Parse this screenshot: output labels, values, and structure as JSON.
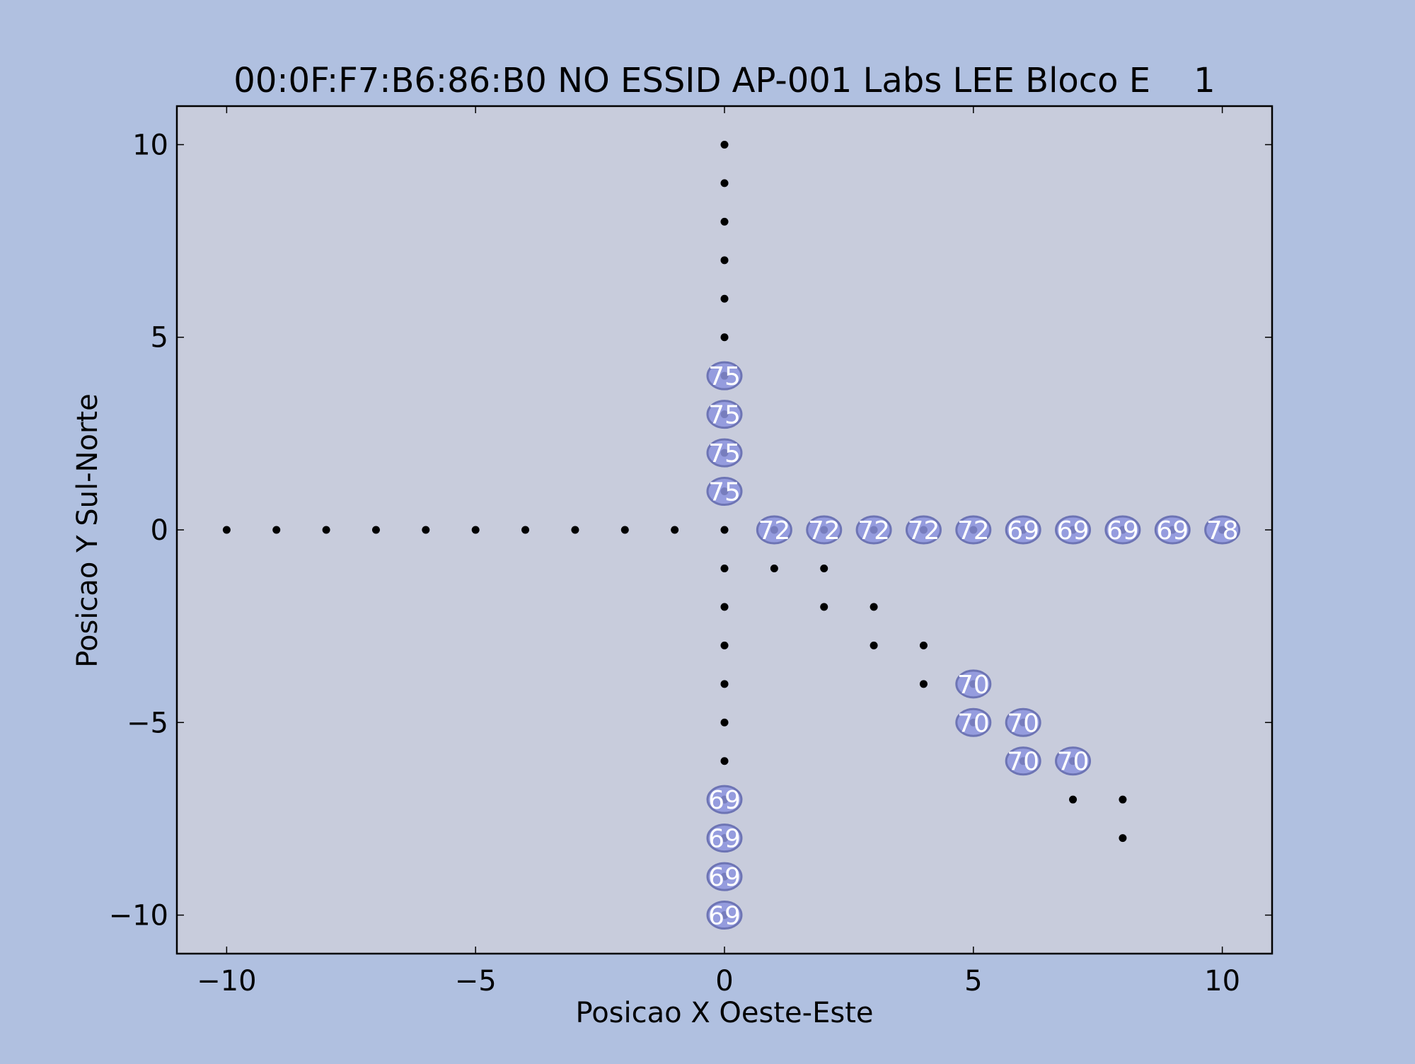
{
  "chart_data": {
    "type": "scatter",
    "title": "00:0F:F7:B6:86:B0 NO ESSID AP-001 Labs LEE Bloco E    1",
    "xlabel": "Posicao X Oeste-Este",
    "ylabel": "Posicao Y Sul-Norte",
    "xlim": [
      -11,
      11
    ],
    "ylim": [
      -11,
      11
    ],
    "xticks": [
      -10,
      -5,
      0,
      5,
      10
    ],
    "yticks": [
      -10,
      -5,
      0,
      5,
      10
    ],
    "xtick_labels": [
      "−10",
      "−5",
      "0",
      "5",
      "10"
    ],
    "ytick_labels": [
      "−10",
      "−5",
      "0",
      "5",
      "10"
    ],
    "grid": false,
    "colors": {
      "figure_bg": "#b0c0e0",
      "axes_bg": "#c8ccdc",
      "point": "#000000",
      "label_fill": "#8c93de",
      "label_edge": "#6d74b4",
      "label_text": "#ffffff"
    },
    "points": [
      [
        -10,
        0
      ],
      [
        -9,
        0
      ],
      [
        -8,
        0
      ],
      [
        -7,
        0
      ],
      [
        -6,
        0
      ],
      [
        -5,
        0
      ],
      [
        -4,
        0
      ],
      [
        -3,
        0
      ],
      [
        -2,
        0
      ],
      [
        -1,
        0
      ],
      [
        0,
        0
      ],
      [
        1,
        0
      ],
      [
        2,
        0
      ],
      [
        3,
        0
      ],
      [
        4,
        0
      ],
      [
        5,
        0
      ],
      [
        6,
        0
      ],
      [
        7,
        0
      ],
      [
        8,
        0
      ],
      [
        9,
        0
      ],
      [
        10,
        0
      ],
      [
        0,
        1
      ],
      [
        0,
        2
      ],
      [
        0,
        3
      ],
      [
        0,
        4
      ],
      [
        0,
        5
      ],
      [
        0,
        6
      ],
      [
        0,
        7
      ],
      [
        0,
        8
      ],
      [
        0,
        9
      ],
      [
        0,
        10
      ],
      [
        0,
        -1
      ],
      [
        0,
        -2
      ],
      [
        0,
        -3
      ],
      [
        0,
        -4
      ],
      [
        0,
        -5
      ],
      [
        0,
        -6
      ],
      [
        0,
        -7
      ],
      [
        0,
        -8
      ],
      [
        0,
        -9
      ],
      [
        0,
        -10
      ],
      [
        1,
        -1
      ],
      [
        2,
        -1
      ],
      [
        2,
        -2
      ],
      [
        3,
        -2
      ],
      [
        3,
        -3
      ],
      [
        4,
        -3
      ],
      [
        4,
        -4
      ],
      [
        5,
        -4
      ],
      [
        5,
        -5
      ],
      [
        6,
        -5
      ],
      [
        6,
        -6
      ],
      [
        7,
        -6
      ],
      [
        7,
        -7
      ],
      [
        8,
        -7
      ],
      [
        8,
        -8
      ]
    ],
    "labels": [
      {
        "x": 0,
        "y": 4,
        "text": "75"
      },
      {
        "x": 0,
        "y": 3,
        "text": "75"
      },
      {
        "x": 0,
        "y": 2,
        "text": "75"
      },
      {
        "x": 0,
        "y": 1,
        "text": "75"
      },
      {
        "x": 1,
        "y": 0,
        "text": "72"
      },
      {
        "x": 2,
        "y": 0,
        "text": "72"
      },
      {
        "x": 3,
        "y": 0,
        "text": "72"
      },
      {
        "x": 4,
        "y": 0,
        "text": "72"
      },
      {
        "x": 5,
        "y": 0,
        "text": "72"
      },
      {
        "x": 6,
        "y": 0,
        "text": "69"
      },
      {
        "x": 7,
        "y": 0,
        "text": "69"
      },
      {
        "x": 8,
        "y": 0,
        "text": "69"
      },
      {
        "x": 9,
        "y": 0,
        "text": "69"
      },
      {
        "x": 10,
        "y": 0,
        "text": "78"
      },
      {
        "x": 5,
        "y": -4,
        "text": "70"
      },
      {
        "x": 5,
        "y": -5,
        "text": "70"
      },
      {
        "x": 6,
        "y": -5,
        "text": "70"
      },
      {
        "x": 6,
        "y": -6,
        "text": "70"
      },
      {
        "x": 7,
        "y": -6,
        "text": "70"
      },
      {
        "x": 0,
        "y": -7,
        "text": "69"
      },
      {
        "x": 0,
        "y": -8,
        "text": "69"
      },
      {
        "x": 0,
        "y": -9,
        "text": "69"
      },
      {
        "x": 0,
        "y": -10,
        "text": "69"
      }
    ]
  }
}
